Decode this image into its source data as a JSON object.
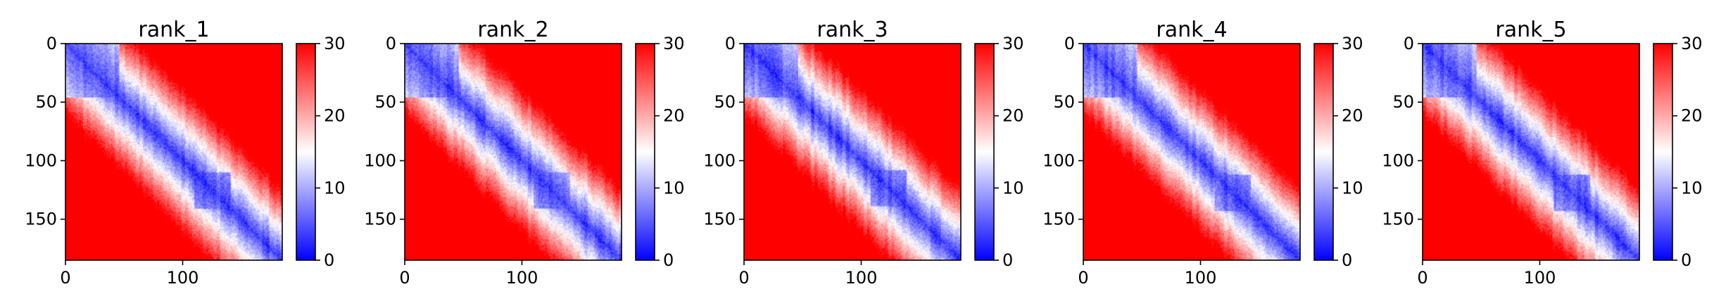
{
  "figure": {
    "colors": {
      "low": "#0000ff",
      "mid": "#ffffff",
      "high": "#ff0000",
      "axis": "#000000"
    },
    "colormap": "bwr"
  },
  "chart_data": [
    {
      "type": "heatmap",
      "title": "rank_1",
      "shape": [
        185,
        185
      ],
      "xlim": [
        0,
        185
      ],
      "ylim": [
        185,
        0
      ],
      "xticks": [
        0,
        100
      ],
      "yticks": [
        0,
        50,
        100,
        150
      ],
      "colorbar": {
        "vmin": 0,
        "vmax": 30,
        "ticks": [
          0,
          10,
          20,
          30
        ]
      },
      "domains": [
        [
          0,
          45
        ],
        [
          110,
          140
        ]
      ]
    },
    {
      "type": "heatmap",
      "title": "rank_2",
      "shape": [
        185,
        185
      ],
      "xlim": [
        0,
        185
      ],
      "ylim": [
        185,
        0
      ],
      "xticks": [
        0,
        100
      ],
      "yticks": [
        0,
        50,
        100,
        150
      ],
      "colorbar": {
        "vmin": 0,
        "vmax": 30,
        "ticks": [
          0,
          10,
          20,
          30
        ]
      },
      "domains": [
        [
          0,
          45
        ],
        [
          110,
          140
        ]
      ]
    },
    {
      "type": "heatmap",
      "title": "rank_3",
      "shape": [
        185,
        185
      ],
      "xlim": [
        0,
        185
      ],
      "ylim": [
        185,
        0
      ],
      "xticks": [
        0,
        100
      ],
      "yticks": [
        0,
        50,
        100,
        150
      ],
      "colorbar": {
        "vmin": 0,
        "vmax": 30,
        "ticks": [
          0,
          10,
          20,
          30
        ]
      },
      "domains": [
        [
          0,
          45
        ],
        [
          108,
          138
        ]
      ]
    },
    {
      "type": "heatmap",
      "title": "rank_4",
      "shape": [
        185,
        185
      ],
      "xlim": [
        0,
        185
      ],
      "ylim": [
        185,
        0
      ],
      "xticks": [
        0,
        100
      ],
      "yticks": [
        0,
        50,
        100,
        150
      ],
      "colorbar": {
        "vmin": 0,
        "vmax": 30,
        "ticks": [
          0,
          10,
          20,
          30
        ]
      },
      "domains": [
        [
          0,
          45
        ],
        [
          112,
          142
        ]
      ]
    },
    {
      "type": "heatmap",
      "title": "rank_5",
      "shape": [
        185,
        185
      ],
      "xlim": [
        0,
        185
      ],
      "ylim": [
        185,
        0
      ],
      "xticks": [
        0,
        100
      ],
      "yticks": [
        0,
        50,
        100,
        150
      ],
      "colorbar": {
        "vmin": 0,
        "vmax": 30,
        "ticks": [
          0,
          10,
          20,
          30
        ]
      },
      "domains": [
        [
          0,
          45
        ],
        [
          112,
          142
        ]
      ]
    }
  ]
}
